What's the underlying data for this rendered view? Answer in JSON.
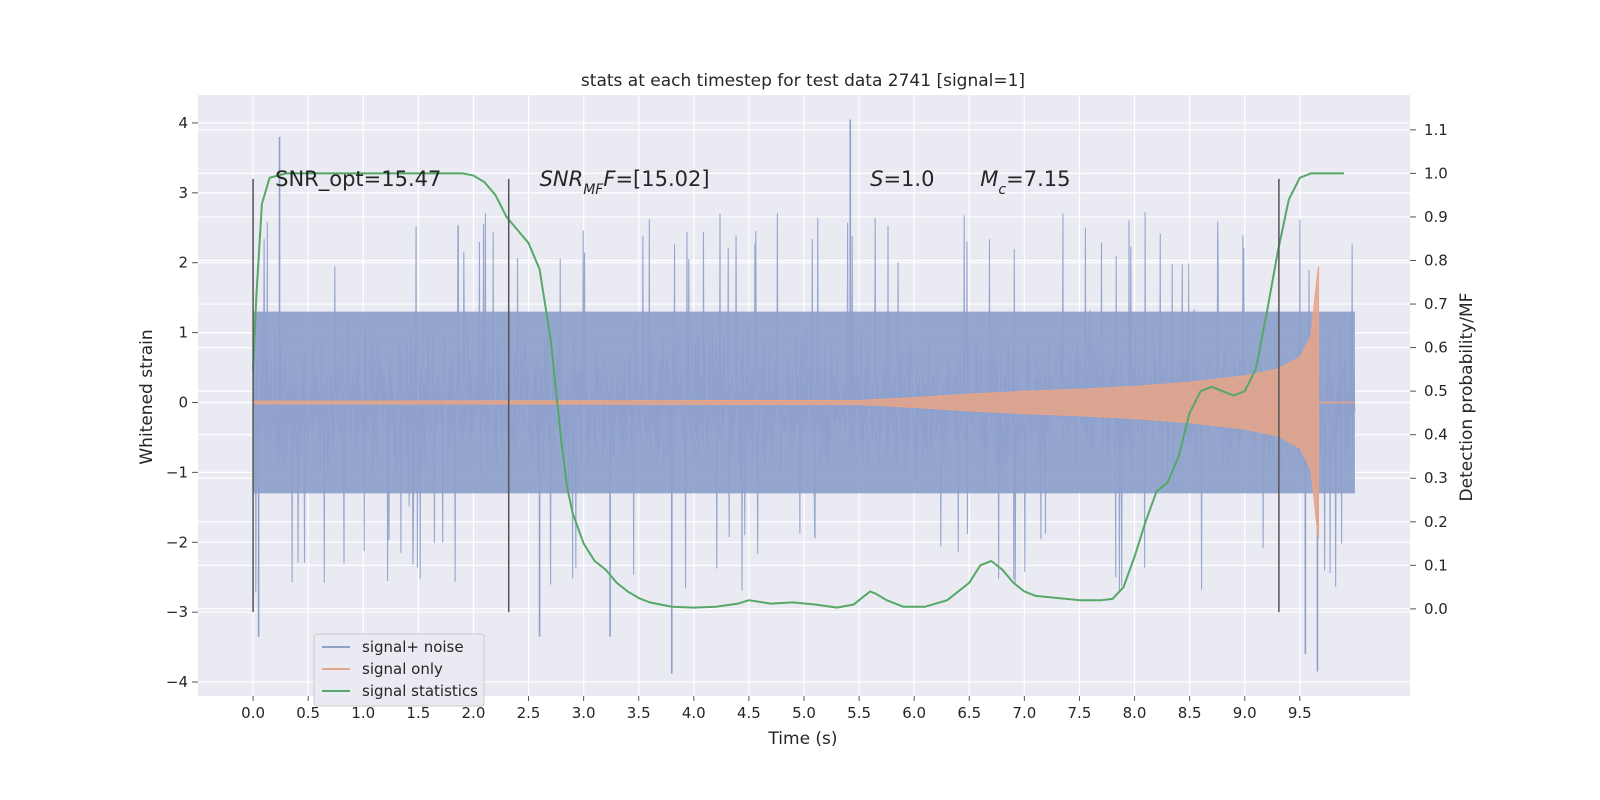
{
  "chart_data": {
    "type": "line",
    "title": "stats at each timestep for test data 2741 [signal=1]",
    "xlabel": "Time (s)",
    "ylabel": "Whitened strain",
    "ylabel_right": "Detection probability/MF",
    "xlim": [
      -0.5,
      10.5
    ],
    "ylim": [
      -4.2,
      4.4
    ],
    "ylim_right": [
      -0.2,
      1.18
    ],
    "x_ticks": [
      0.0,
      0.5,
      1.0,
      1.5,
      2.0,
      2.5,
      3.0,
      3.5,
      4.0,
      4.5,
      5.0,
      5.5,
      6.0,
      6.5,
      7.0,
      7.5,
      8.0,
      8.5,
      9.0,
      9.5
    ],
    "x_tick_labels": [
      "0.0",
      "0.5",
      "1.0",
      "1.5",
      "2.0",
      "2.5",
      "3.0",
      "3.5",
      "4.0",
      "4.5",
      "5.0",
      "5.5",
      "6.0",
      "6.5",
      "7.0",
      "7.5",
      "8.0",
      "8.5",
      "9.0",
      "9.5"
    ],
    "y_ticks": [
      -4,
      -3,
      -2,
      -1,
      0,
      1,
      2,
      3,
      4
    ],
    "y_tick_labels": [
      "−4",
      "−3",
      "−2",
      "−1",
      "0",
      "1",
      "2",
      "3",
      "4"
    ],
    "y_right_ticks": [
      0.0,
      0.1,
      0.2,
      0.3,
      0.4,
      0.5,
      0.6,
      0.7,
      0.8,
      0.9,
      1.0,
      1.1
    ],
    "y_right_tick_labels": [
      "0.0",
      "0.1",
      "0.2",
      "0.3",
      "0.4",
      "0.5",
      "0.6",
      "0.7",
      "0.8",
      "0.9",
      "1.0",
      "1.1"
    ],
    "grid": true,
    "legend_position": "lower-left",
    "annotations": [
      {
        "id": "snr-opt",
        "segments": [
          {
            "text": "SNR_opt=15.47"
          }
        ],
        "x": 0.2,
        "y": 3.1
      },
      {
        "id": "snr-mf",
        "segments": [
          {
            "text": "SNR",
            "italic": true
          },
          {
            "text": "MF",
            "italic": true,
            "sub": true
          },
          {
            "text": "F",
            "italic": true
          },
          {
            "text": "=[15.02]"
          }
        ],
        "x": 2.6,
        "y": 3.1
      },
      {
        "id": "s-val",
        "segments": [
          {
            "text": "S",
            "italic": true
          },
          {
            "text": "=1.0"
          }
        ],
        "x": 5.6,
        "y": 3.1
      },
      {
        "id": "mc-val",
        "segments": [
          {
            "text": "M",
            "italic": true
          },
          {
            "text": "c",
            "italic": true,
            "sub": true
          },
          {
            "text": "=7.15"
          }
        ],
        "x": 6.6,
        "y": 3.1
      }
    ],
    "vertical_markers": [
      {
        "x": 0.0,
        "y_range": [
          -3.0,
          3.2
        ]
      },
      {
        "x": 2.32,
        "y_range": [
          -3.0,
          3.2
        ]
      },
      {
        "x": 9.31,
        "y_range": [
          -3.0,
          3.2
        ]
      }
    ],
    "series": [
      {
        "name": "signal+ noise",
        "color": "#8da0cb",
        "kind": "noise_band",
        "x_range": [
          0.0,
          10.0
        ],
        "core_envelope": [
          -1.3,
          1.3
        ],
        "typical_peaks": [
          -2.3,
          2.5
        ],
        "extreme_values": [
          {
            "x": 0.05,
            "y": -3.35
          },
          {
            "x": 0.24,
            "y": 3.8
          },
          {
            "x": 2.6,
            "y": -3.35
          },
          {
            "x": 3.24,
            "y": -3.35
          },
          {
            "x": 3.8,
            "y": -3.88
          },
          {
            "x": 5.42,
            "y": 4.05
          },
          {
            "x": 9.55,
            "y": -3.6
          },
          {
            "x": 9.66,
            "y": -3.85
          }
        ]
      },
      {
        "name": "signal only",
        "color": "#e8a587",
        "kind": "chirp_envelope",
        "envelope": {
          "x": [
            0.0,
            5.5,
            6.0,
            6.5,
            7.0,
            7.5,
            8.0,
            8.5,
            9.0,
            9.3,
            9.5,
            9.6,
            9.65,
            9.67
          ],
          "y": [
            0.02,
            0.03,
            0.07,
            0.12,
            0.16,
            0.19,
            0.23,
            0.29,
            0.38,
            0.48,
            0.65,
            0.95,
            1.7,
            1.95
          ]
        },
        "post_merger": {
          "x": [
            9.67,
            10.0
          ],
          "y": 0.0
        }
      },
      {
        "name": "signal statistics",
        "color": "#55a868",
        "axis": "right",
        "x": [
          0.0,
          0.03,
          0.08,
          0.15,
          0.3,
          1.0,
          1.9,
          2.0,
          2.1,
          2.2,
          2.3,
          2.4,
          2.5,
          2.6,
          2.7,
          2.8,
          2.85,
          2.9,
          3.0,
          3.1,
          3.2,
          3.3,
          3.4,
          3.5,
          3.6,
          3.8,
          4.0,
          4.2,
          4.4,
          4.5,
          4.7,
          4.9,
          5.1,
          5.3,
          5.45,
          5.55,
          5.6,
          5.65,
          5.75,
          5.9,
          6.1,
          6.3,
          6.5,
          6.6,
          6.7,
          6.8,
          6.9,
          7.0,
          7.1,
          7.3,
          7.5,
          7.7,
          7.8,
          7.9,
          8.0,
          8.1,
          8.2,
          8.3,
          8.4,
          8.5,
          8.6,
          8.7,
          8.8,
          8.9,
          9.0,
          9.1,
          9.2,
          9.3,
          9.4,
          9.5,
          9.6,
          9.7,
          9.9
        ],
        "y": [
          0.55,
          0.72,
          0.93,
          0.99,
          1.0,
          1.0,
          1.0,
          0.995,
          0.98,
          0.95,
          0.9,
          0.87,
          0.84,
          0.78,
          0.62,
          0.38,
          0.28,
          0.22,
          0.15,
          0.11,
          0.09,
          0.06,
          0.04,
          0.025,
          0.015,
          0.005,
          0.003,
          0.005,
          0.012,
          0.02,
          0.012,
          0.015,
          0.01,
          0.003,
          0.01,
          0.03,
          0.04,
          0.035,
          0.02,
          0.005,
          0.005,
          0.02,
          0.06,
          0.1,
          0.11,
          0.09,
          0.06,
          0.04,
          0.03,
          0.025,
          0.02,
          0.02,
          0.023,
          0.05,
          0.12,
          0.2,
          0.27,
          0.29,
          0.35,
          0.45,
          0.5,
          0.51,
          0.5,
          0.49,
          0.5,
          0.55,
          0.68,
          0.82,
          0.94,
          0.99,
          1.0,
          1.0,
          1.0
        ]
      }
    ]
  }
}
